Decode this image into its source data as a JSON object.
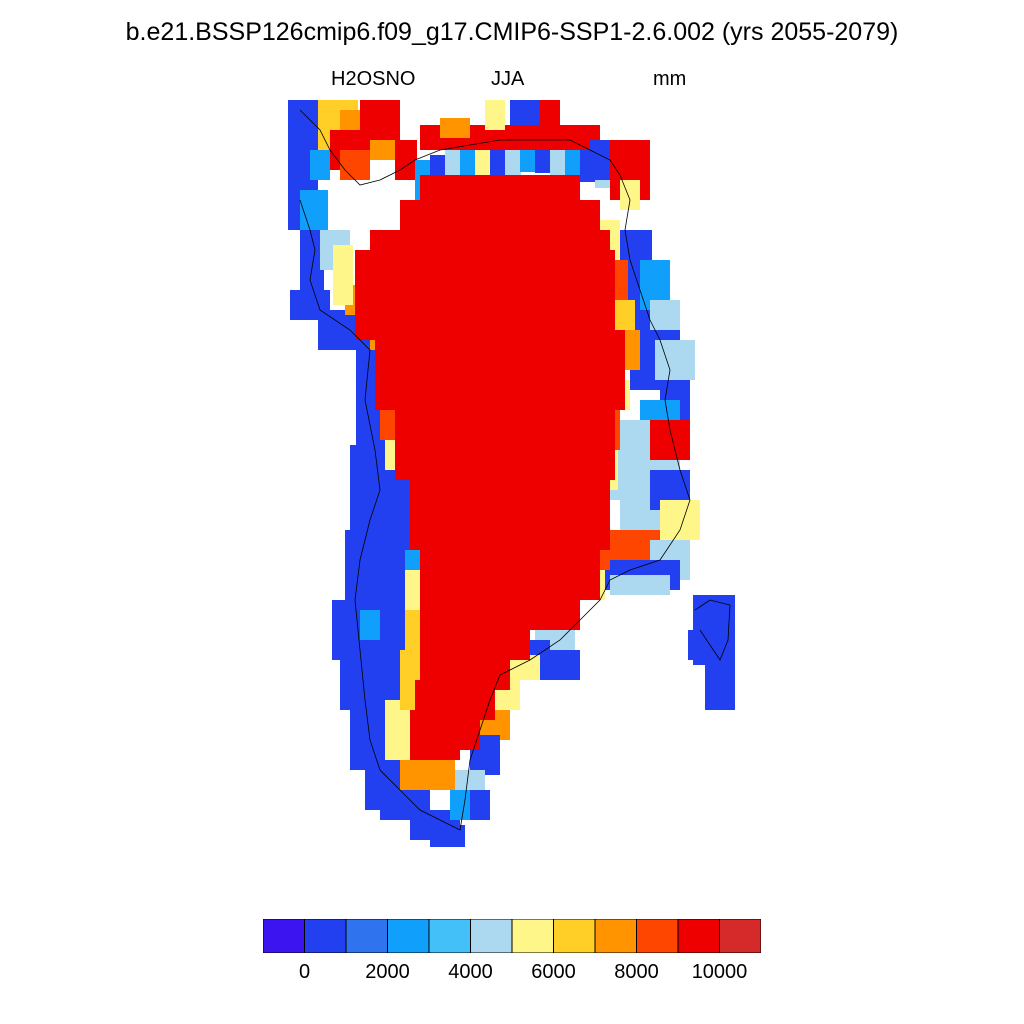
{
  "title": "b.e21.BSSP126cmip6.f09_g17.CMIP6-SSP1-2.6.002 (yrs 2055-2079)",
  "subtitle": {
    "variable": "H2OSNO",
    "season": "JJA",
    "units": "mm"
  },
  "colorbar": {
    "colors": [
      "#3c14f0",
      "#2340f0",
      "#2f74ee",
      "#10a0fc",
      "#44c0f8",
      "#acd8f0",
      "#fff68a",
      "#ffcf28",
      "#ff9400",
      "#ff4600",
      "#ee0000",
      "#d62a2a"
    ],
    "tick_labels": [
      "0",
      "2000",
      "4000",
      "6000",
      "8000",
      "10000"
    ]
  },
  "map": {
    "region": "Greenland",
    "colors": {
      "interior": "#ee0000",
      "coast_low": "#2340f0",
      "coast_mid": "#10a0fc",
      "coast_light": "#acd8f0",
      "edge_yellow": "#fff68a",
      "edge_gold": "#ffcf28",
      "edge_orange": "#ff9400",
      "edge_redorange": "#ff4600"
    }
  }
}
